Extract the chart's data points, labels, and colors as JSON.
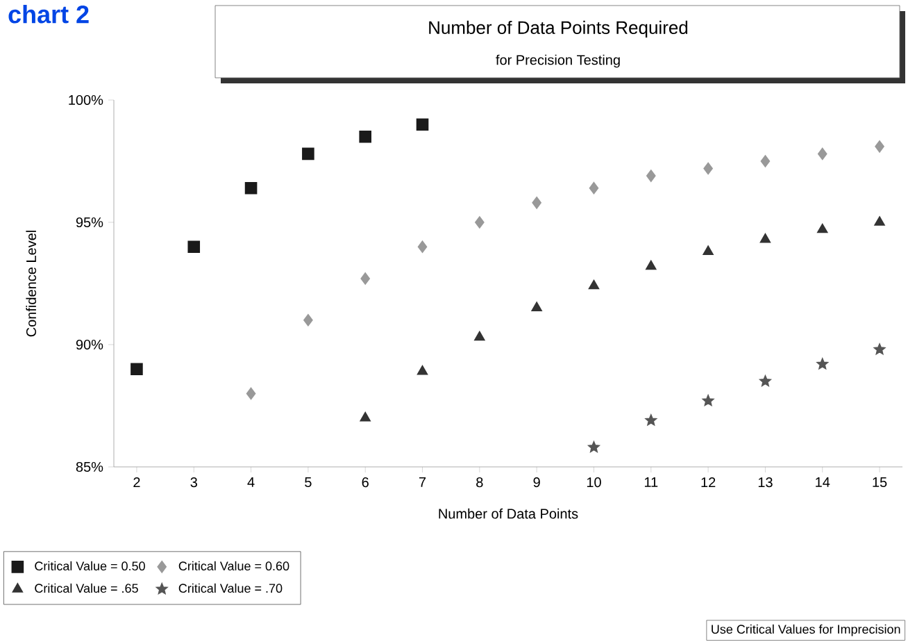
{
  "chart_data": {
    "type": "scatter",
    "title": "Number of Data Points Required",
    "subtitle": "for Precision Testing",
    "xlabel": "Number of Data Points",
    "ylabel": "Confidence Level",
    "annotations": [
      "chart 2",
      "Use Critical Values for Imprecision"
    ],
    "x": [
      2,
      3,
      4,
      5,
      6,
      7,
      8,
      9,
      10,
      11,
      12,
      13,
      14,
      15
    ],
    "series": [
      {
        "name": "Critical Value = 0.50",
        "color": "#1a1a1a",
        "marker": "square",
        "values": [
          89.0,
          94.0,
          96.4,
          97.8,
          98.5,
          99.0,
          null,
          null,
          null,
          null,
          null,
          null,
          null,
          null
        ]
      },
      {
        "name": "Critical Value = 0.60",
        "color": "#999999",
        "marker": "diamond",
        "values": [
          null,
          null,
          88.0,
          91.0,
          92.7,
          94.0,
          95.0,
          95.8,
          96.4,
          96.9,
          97.2,
          97.5,
          97.8,
          98.1
        ]
      },
      {
        "name": "Critical Value = .65",
        "color": "#333333",
        "marker": "triangle",
        "values": [
          null,
          null,
          null,
          null,
          87.0,
          88.9,
          90.3,
          91.5,
          92.4,
          93.2,
          93.8,
          94.3,
          94.7,
          95.0
        ]
      },
      {
        "name": "Critical Value = .70",
        "color": "#555555",
        "marker": "star",
        "values": [
          null,
          null,
          null,
          null,
          null,
          null,
          null,
          null,
          85.8,
          86.9,
          87.7,
          88.5,
          89.2,
          89.8
        ]
      }
    ],
    "xlim": [
      1.6,
      15.4
    ],
    "ylim": [
      85,
      100
    ],
    "xticks": [
      2,
      3,
      4,
      5,
      6,
      7,
      8,
      9,
      10,
      11,
      12,
      13,
      14,
      15
    ],
    "yticks": [
      {
        "value": 85,
        "label": "85%"
      },
      {
        "value": 90,
        "label": "90%"
      },
      {
        "value": 95,
        "label": "95%"
      },
      {
        "value": 100,
        "label": "100%"
      }
    ],
    "grid": false,
    "legend": "bottom left"
  }
}
